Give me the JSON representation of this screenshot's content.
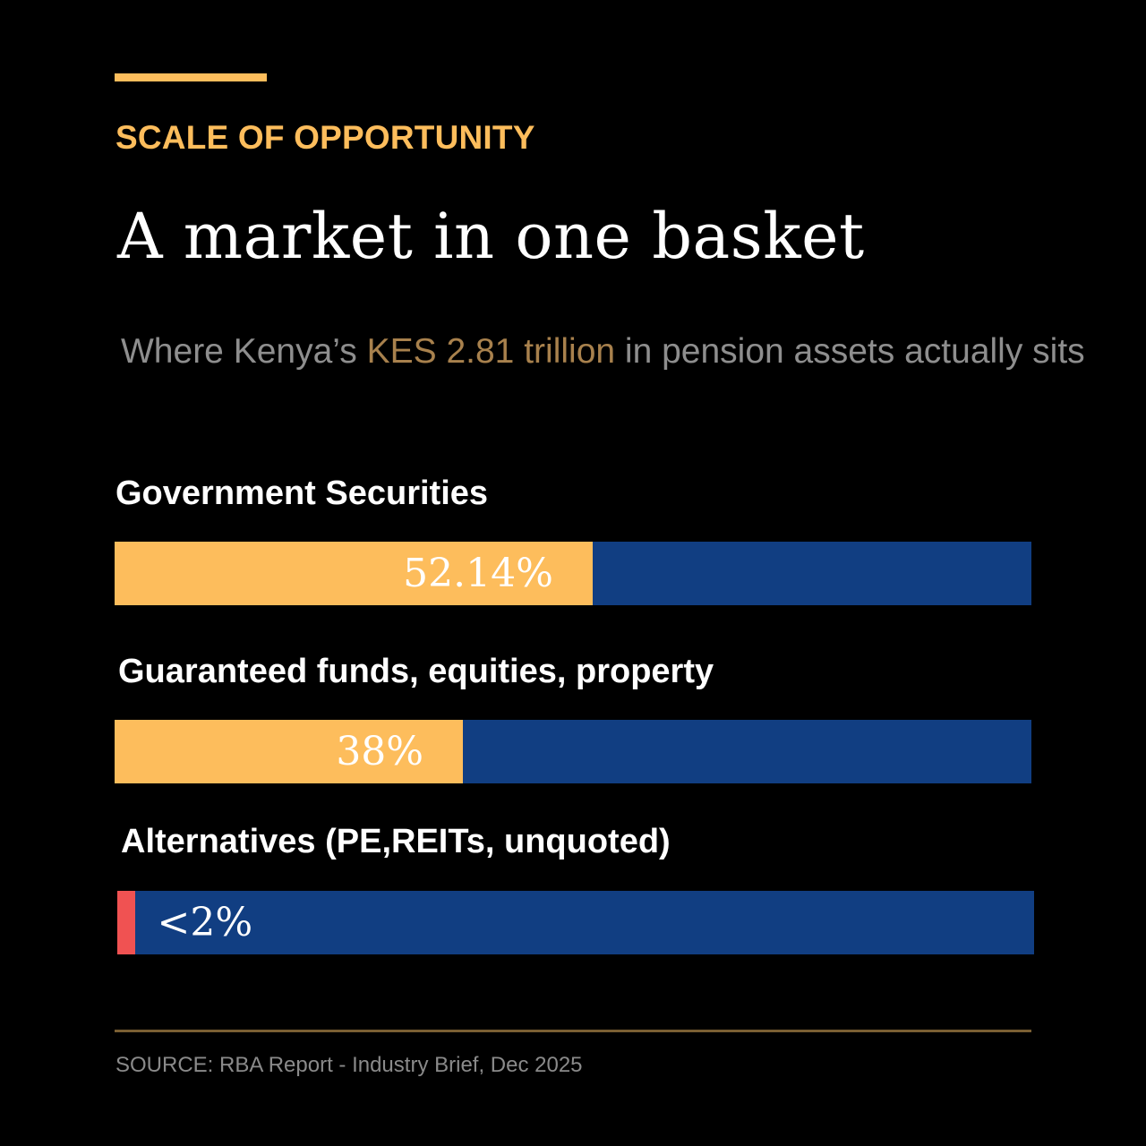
{
  "header": {
    "eyebrow": "SCALE OF OPPORTUNITY",
    "title": "A market in one basket",
    "subtitle_pre": "Where Kenya’s ",
    "subtitle_highlight": "KES 2.81 trillion",
    "subtitle_post": " in pension assets actually sits"
  },
  "colors": {
    "background": "#000000",
    "accent": "#fdbd5c",
    "track": "#113e82",
    "alternatives": "#f05252",
    "highlight_text": "#a8814d"
  },
  "chart_data": {
    "type": "bar",
    "orientation": "horizontal",
    "categories": [
      "Government Securities",
      "Guaranteed funds, equities, property",
      "Alternatives (PE,REITs, unquoted)"
    ],
    "values": [
      52.14,
      38,
      2
    ],
    "value_labels": [
      "52.14%",
      "38%",
      "<2%"
    ],
    "xlim": [
      0,
      100
    ],
    "unit": "%"
  },
  "footer": {
    "source": "SOURCE: RBA Report - Industry Brief, Dec 2025"
  }
}
